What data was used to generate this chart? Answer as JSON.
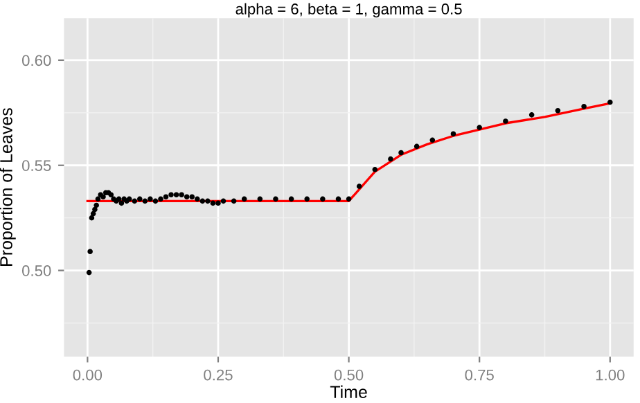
{
  "chart_data": {
    "type": "scatter",
    "title": "alpha = 6, beta = 1, gamma = 0.5",
    "xlabel": "Time",
    "ylabel": "Proportion of Leaves",
    "xlim": [
      -0.045,
      1.045
    ],
    "ylim": [
      0.459,
      0.62
    ],
    "xticks": [
      {
        "value": 0,
        "label": "0.00"
      },
      0.25,
      {
        "value": 0.5,
        "label": "0.50"
      },
      0.75,
      {
        "value": 1,
        "label": "1.00"
      }
    ],
    "yticks": [
      {
        "value": 0.5,
        "label": "0.50"
      },
      0.55,
      {
        "value": 0.6,
        "label": "0.60"
      }
    ],
    "grid": true,
    "series": [
      {
        "marker": "circle",
        "color": "#000000",
        "x": [
          0.003,
          0.005,
          0.008,
          0.011,
          0.014,
          0.017,
          0.02,
          0.025,
          0.03,
          0.035,
          0.04,
          0.045,
          0.05,
          0.055,
          0.06,
          0.065,
          0.07,
          0.075,
          0.08,
          0.09,
          0.1,
          0.11,
          0.12,
          0.13,
          0.14,
          0.15,
          0.16,
          0.17,
          0.18,
          0.19,
          0.2,
          0.21,
          0.22,
          0.23,
          0.24,
          0.25,
          0.26,
          0.28,
          0.3,
          0.33,
          0.36,
          0.39,
          0.42,
          0.45,
          0.48,
          0.5,
          0.52,
          0.55,
          0.58,
          0.6,
          0.63,
          0.66,
          0.7,
          0.75,
          0.8,
          0.85,
          0.9,
          0.95,
          1.0
        ],
        "values": [
          0.499,
          0.509,
          0.525,
          0.527,
          0.529,
          0.531,
          0.534,
          0.536,
          0.535,
          0.537,
          0.537,
          0.536,
          0.534,
          0.533,
          0.534,
          0.532,
          0.534,
          0.533,
          0.534,
          0.533,
          0.534,
          0.533,
          0.534,
          0.533,
          0.534,
          0.535,
          0.536,
          0.536,
          0.536,
          0.535,
          0.535,
          0.534,
          0.533,
          0.533,
          0.532,
          0.532,
          0.533,
          0.533,
          0.534,
          0.534,
          0.534,
          0.534,
          0.534,
          0.534,
          0.534,
          0.534,
          0.54,
          0.548,
          0.553,
          0.556,
          0.559,
          0.562,
          0.565,
          0.568,
          0.571,
          0.574,
          0.576,
          0.578,
          0.58
        ]
      },
      {
        "type": "line",
        "color": "#ff0000",
        "x": [
          0.0,
          0.5,
          0.55,
          0.6,
          0.65,
          0.7,
          0.75,
          0.8,
          0.875,
          0.95,
          1.0
        ],
        "values": [
          0.533,
          0.533,
          0.547,
          0.555,
          0.56,
          0.564,
          0.567,
          0.57,
          0.573,
          0.577,
          0.5795
        ]
      }
    ]
  }
}
